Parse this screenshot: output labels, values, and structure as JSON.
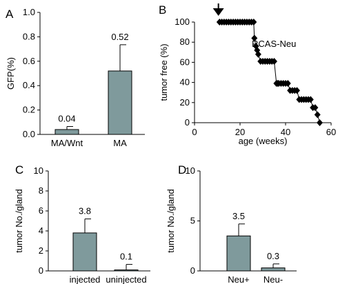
{
  "chart_data": [
    {
      "panel": "A",
      "type": "bar",
      "categories": [
        "MA/Wnt",
        "MA"
      ],
      "values": [
        0.04,
        0.52
      ],
      "errors": [
        0.025,
        0.215
      ],
      "data_labels": [
        "0.04",
        "0.52"
      ],
      "ylabel": "GFP(%)",
      "ylim": [
        0,
        1.0
      ],
      "yticks": [
        0,
        0.2,
        0.4,
        0.6,
        0.8,
        1.0
      ],
      "ytick_labels": [
        "0.0",
        "0.2",
        "0.4",
        "0.6",
        "0.8",
        "1.0"
      ],
      "bar_color": "#7f9a9c"
    },
    {
      "panel": "B",
      "type": "line",
      "annotation": "RCAS-Neu",
      "xlabel": "age (weeks)",
      "ylabel": "tumor free (%)",
      "xlim": [
        0,
        60
      ],
      "ylim": [
        0,
        100
      ],
      "xticks": [
        0,
        20,
        40,
        60
      ],
      "xtick_labels": [
        "0",
        "20",
        "40",
        "60"
      ],
      "yticks": [
        0,
        20,
        40,
        60,
        80,
        100
      ],
      "ytick_labels": [
        "0",
        "20",
        "40",
        "60",
        "80",
        "100"
      ],
      "arrow_x": 10.5,
      "x": [
        11,
        12,
        13,
        14,
        15,
        16,
        17,
        18,
        19,
        20,
        21,
        22,
        23,
        24,
        25,
        26,
        26.3,
        27,
        27.5,
        28,
        29,
        30,
        31,
        32,
        33,
        34,
        35,
        36,
        36.5,
        37,
        38,
        39,
        40,
        41,
        42,
        43,
        44,
        45,
        46,
        47,
        48,
        49,
        50,
        51,
        52,
        53,
        54,
        55
      ],
      "y": [
        100,
        100,
        100,
        100,
        100,
        100,
        100,
        100,
        100,
        100,
        100,
        100,
        100,
        100,
        100,
        100,
        84,
        76,
        72,
        68,
        61,
        61,
        61,
        61,
        61,
        61,
        61,
        39,
        39,
        39,
        39,
        39,
        39,
        39,
        32,
        32,
        32,
        32,
        23,
        23,
        23,
        23,
        23,
        23,
        15,
        15,
        8,
        0
      ],
      "line_color": "#000000"
    },
    {
      "panel": "C",
      "type": "bar",
      "categories": [
        "injected",
        "uninjected"
      ],
      "values": [
        3.8,
        0.1
      ],
      "errors": [
        1.4,
        0.55
      ],
      "data_labels": [
        "3.8",
        "0.1"
      ],
      "ylabel": "tumor No./gland",
      "ylim": [
        0,
        10
      ],
      "yticks": [
        0,
        2,
        4,
        6,
        8,
        10
      ],
      "ytick_labels": [
        "0",
        "2",
        "4",
        "6",
        "8",
        "10"
      ],
      "bar_color": "#7f9a9c"
    },
    {
      "panel": "D",
      "type": "bar",
      "categories": [
        "Neu+",
        "Neu-"
      ],
      "values": [
        3.5,
        0.3
      ],
      "errors": [
        1.2,
        0.4
      ],
      "data_labels": [
        "3.5",
        "0.3"
      ],
      "ylabel": "tumor No./gland",
      "ylim": [
        0,
        10
      ],
      "yticks": [
        0,
        5,
        10
      ],
      "ytick_labels": [
        "0",
        "5",
        "10"
      ],
      "bar_color": "#7f9a9c"
    }
  ]
}
